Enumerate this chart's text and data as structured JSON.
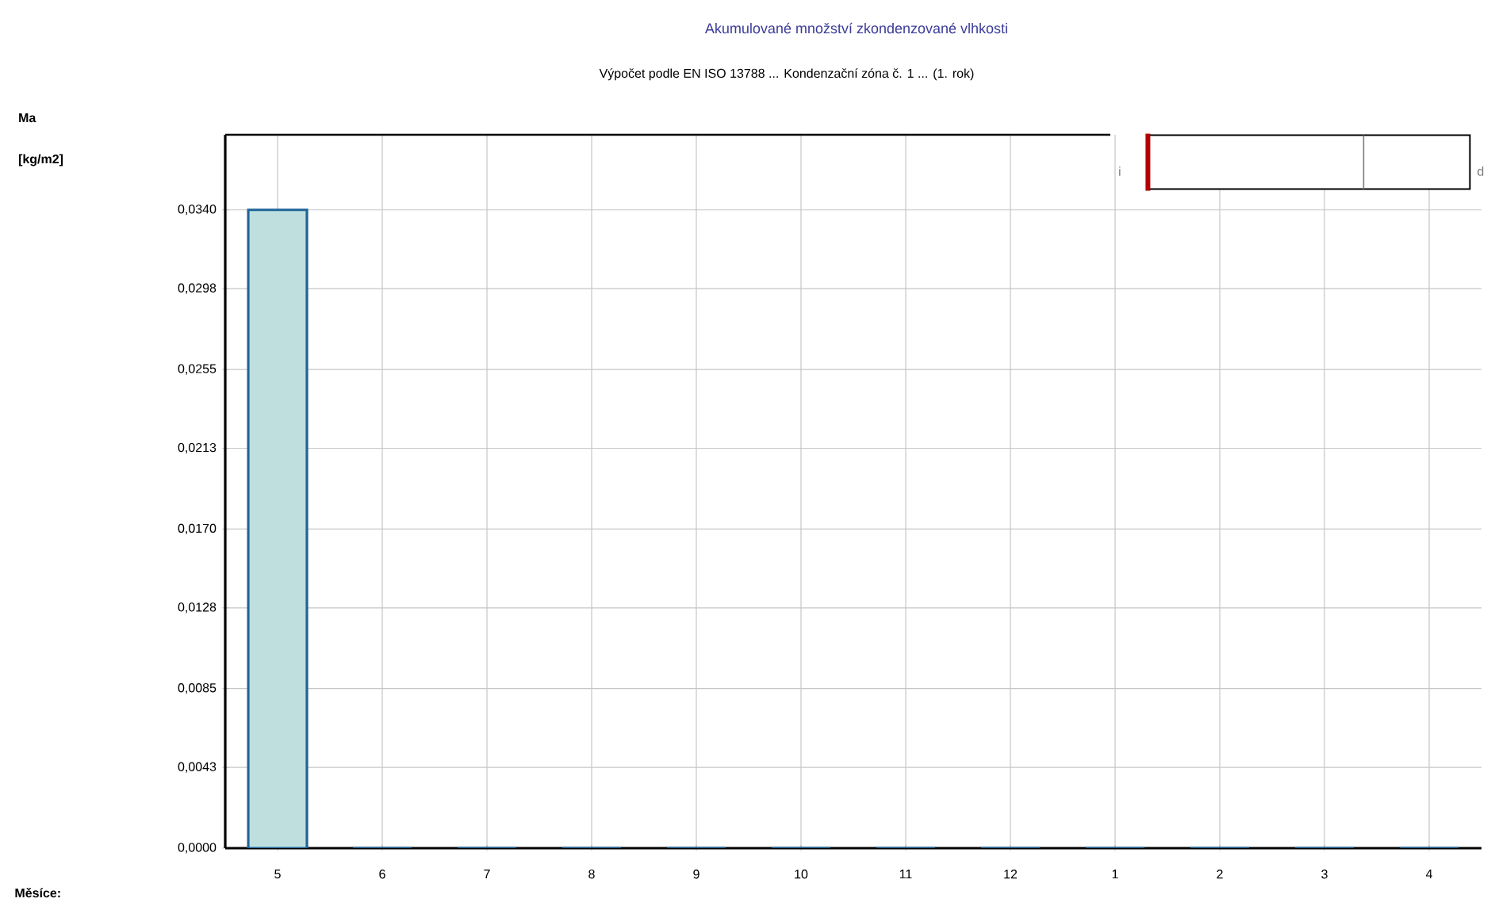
{
  "chart_data": {
    "type": "bar",
    "title": "Akumulované množství zkondenzované vlhkosti",
    "subtitle": "Výpočet podle EN ISO 13788 ... Kondenzační zóna č. 1 ... (1. rok)",
    "ylabel": "Ma [kg/m2]",
    "categories": [
      "5",
      "6",
      "7",
      "8",
      "9",
      "10",
      "11",
      "12",
      "1",
      "2",
      "3",
      "4"
    ],
    "values": [
      0.034,
      0,
      0,
      0,
      0,
      0,
      0,
      0,
      0,
      0,
      0,
      0
    ],
    "color": "#1f6496",
    "ylim": [
      0,
      0.038
    ],
    "yticks": [
      {
        "value": 0,
        "label": "0,0000"
      },
      {
        "value": 0.0043,
        "label": "0,0043"
      },
      {
        "value": 0.0085,
        "label": "0,0085"
      },
      {
        "value": 0.0128,
        "label": "0,0128"
      },
      {
        "value": 0.017,
        "label": "0,0170"
      },
      {
        "value": 0.0213,
        "label": "0,0213"
      },
      {
        "value": 0.0255,
        "label": "0,0255"
      },
      {
        "value": 0.0298,
        "label": "0,0298"
      },
      {
        "value": 0.034,
        "label": "0,0340"
      }
    ],
    "grid": true,
    "annotations": [
      "i",
      "d",
      "Měsíce:"
    ]
  }
}
